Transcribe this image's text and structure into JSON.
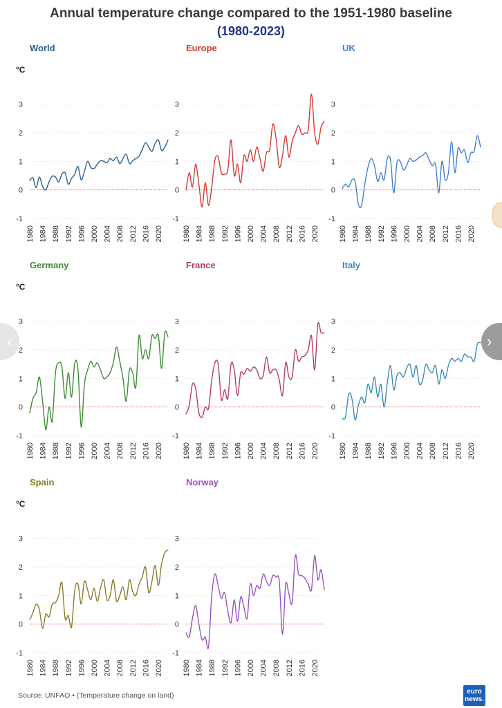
{
  "title": "Annual temperature change compared to the 1951-1980 baseline",
  "subtitle": "(1980-2023)",
  "subtitle_color": "#23338f",
  "unit_label": "°C",
  "source": "Source: UNFAO • (Temperature change on land)",
  "logo": {
    "line1": "euro",
    "line2": "news."
  },
  "nav": {
    "prev_icon": "chevron-left-icon",
    "next_icon": "chevron-right-icon",
    "prev_glyph": "‹",
    "next_glyph": "›"
  },
  "chart_data": [
    {
      "type": "line",
      "title": "World",
      "color": "#2d5e8e",
      "ylabel": "°C",
      "ylim": [
        -1,
        3.5
      ],
      "yticks": [
        -1,
        0,
        1,
        2,
        3
      ],
      "baseline": 0,
      "xticks": [
        "1980",
        "1984",
        "1988",
        "1992",
        "1996",
        "2000",
        "2004",
        "2008",
        "2012",
        "2016",
        "2020"
      ],
      "x_start": 1980,
      "x_end": 2023,
      "values": [
        0.32,
        0.42,
        0.08,
        0.45,
        0.12,
        0.0,
        0.28,
        0.48,
        0.45,
        0.28,
        0.55,
        0.6,
        0.2,
        0.4,
        0.55,
        0.82,
        0.35,
        0.65,
        1.0,
        0.78,
        0.75,
        0.9,
        1.02,
        1.0,
        0.95,
        1.1,
        1.02,
        1.15,
        0.92,
        1.1,
        1.25,
        0.92,
        1.02,
        1.1,
        1.18,
        1.42,
        1.65,
        1.5,
        1.35,
        1.62,
        1.75,
        1.38,
        1.5,
        1.75
      ]
    },
    {
      "type": "line",
      "title": "Europe",
      "color": "#d23a32",
      "ylabel": "",
      "ylim": [
        -1,
        3.5
      ],
      "yticks": [
        -1,
        0,
        1,
        2,
        3
      ],
      "baseline": 0,
      "xticks": [
        "1980",
        "1984",
        "1988",
        "1992",
        "1996",
        "2000",
        "2004",
        "2008",
        "2012",
        "2016",
        "2020"
      ],
      "x_start": 1980,
      "x_end": 2023,
      "values": [
        0.0,
        0.6,
        0.1,
        0.9,
        0.2,
        -0.6,
        0.25,
        -0.55,
        0.1,
        1.05,
        1.15,
        0.6,
        0.55,
        0.7,
        1.75,
        0.5,
        0.9,
        0.25,
        1.2,
        1.0,
        1.4,
        1.0,
        1.5,
        1.1,
        0.65,
        1.3,
        1.4,
        2.3,
        1.8,
        0.8,
        1.2,
        1.9,
        1.15,
        1.7,
        2.0,
        2.25,
        1.95,
        2.0,
        2.1,
        3.35,
        2.0,
        1.6,
        2.2,
        2.4
      ]
    },
    {
      "type": "line",
      "title": "UK",
      "color": "#3f80d6",
      "ylabel": "",
      "ylim": [
        -1,
        3.5
      ],
      "yticks": [
        -1,
        0,
        1,
        2,
        3
      ],
      "baseline": 0,
      "xticks": [
        "1980",
        "1984",
        "1988",
        "1992",
        "1996",
        "2000",
        "2004",
        "2008",
        "2012",
        "2016",
        "2020"
      ],
      "x_start": 1980,
      "x_end": 2023,
      "values": [
        0.05,
        0.2,
        0.1,
        0.35,
        0.3,
        -0.5,
        -0.55,
        0.2,
        0.8,
        1.1,
        0.85,
        0.3,
        0.6,
        0.35,
        1.1,
        1.05,
        -0.1,
        0.95,
        1.0,
        0.7,
        0.85,
        1.1,
        1.0,
        1.05,
        1.15,
        1.2,
        1.3,
        1.05,
        0.85,
        0.9,
        -0.1,
        1.0,
        0.35,
        0.6,
        1.7,
        0.6,
        1.45,
        1.3,
        1.4,
        0.95,
        1.3,
        1.35,
        1.9,
        1.5
      ]
    },
    {
      "type": "line",
      "title": "Germany",
      "color": "#3c8c35",
      "ylabel": "°C",
      "ylim": [
        -1,
        3.5
      ],
      "yticks": [
        -1,
        0,
        1,
        2,
        3
      ],
      "baseline": 0,
      "xticks": [
        "1980",
        "1984",
        "1988",
        "1992",
        "1996",
        "2000",
        "2004",
        "2008",
        "2012",
        "2016",
        "2020"
      ],
      "x_start": 1980,
      "x_end": 2023,
      "values": [
        -0.2,
        0.3,
        0.5,
        1.05,
        0.2,
        -0.8,
        0.0,
        -0.5,
        1.2,
        1.55,
        1.4,
        0.3,
        1.2,
        0.35,
        1.55,
        1.3,
        -0.7,
        0.8,
        1.3,
        1.6,
        1.4,
        1.55,
        1.3,
        1.0,
        1.05,
        1.2,
        1.55,
        2.1,
        1.6,
        1.0,
        0.2,
        1.3,
        1.2,
        0.7,
        2.5,
        1.7,
        2.0,
        1.7,
        2.5,
        2.4,
        2.5,
        1.35,
        2.6,
        2.45
      ]
    },
    {
      "type": "line",
      "title": "France",
      "color": "#b23d68",
      "ylabel": "",
      "ylim": [
        -1,
        3.5
      ],
      "yticks": [
        -1,
        0,
        1,
        2,
        3
      ],
      "baseline": 0,
      "xticks": [
        "1980",
        "1984",
        "1988",
        "1992",
        "1996",
        "2000",
        "2004",
        "2008",
        "2012",
        "2016",
        "2020"
      ],
      "x_start": 1980,
      "x_end": 2023,
      "values": [
        -0.25,
        0.05,
        0.8,
        0.65,
        -0.2,
        -0.35,
        0.0,
        -0.05,
        0.95,
        1.55,
        1.5,
        0.25,
        0.6,
        0.3,
        1.5,
        1.3,
        0.4,
        1.2,
        1.15,
        1.35,
        1.25,
        1.4,
        1.3,
        1.0,
        1.1,
        1.75,
        1.2,
        1.3,
        1.3,
        0.95,
        0.4,
        1.55,
        1.05,
        1.05,
        2.0,
        1.6,
        1.75,
        1.8,
        2.0,
        2.5,
        1.3,
        2.9,
        2.6,
        2.6
      ]
    },
    {
      "type": "line",
      "title": "Italy",
      "color": "#3a8ab8",
      "ylabel": "",
      "ylim": [
        -1,
        3.5
      ],
      "yticks": [
        -1,
        0,
        1,
        2,
        3
      ],
      "baseline": 0,
      "xticks": [
        "1980",
        "1984",
        "1988",
        "1992",
        "1996",
        "2000",
        "2004",
        "2008",
        "2012",
        "2016",
        "2020"
      ],
      "x_start": 1980,
      "x_end": 2023,
      "values": [
        -0.4,
        -0.35,
        0.45,
        0.3,
        -0.45,
        0.05,
        0.35,
        0.15,
        0.8,
        0.5,
        1.05,
        0.35,
        0.8,
        0.0,
        0.85,
        1.45,
        0.6,
        1.1,
        1.2,
        1.05,
        1.35,
        1.5,
        1.05,
        1.45,
        0.8,
        0.95,
        1.5,
        1.3,
        1.2,
        1.45,
        0.8,
        1.3,
        1.0,
        1.45,
        1.7,
        1.6,
        1.7,
        1.6,
        1.85,
        1.75,
        1.75,
        1.6,
        2.2,
        2.25
      ]
    },
    {
      "type": "line",
      "title": "Spain",
      "color": "#8a7a2a",
      "ylabel": "°C",
      "ylim": [
        -1,
        3.5
      ],
      "yticks": [
        -1,
        0,
        1,
        2,
        3
      ],
      "baseline": 0,
      "xticks": [
        "1980",
        "1984",
        "1988",
        "1992",
        "1996",
        "2000",
        "2004",
        "2008",
        "2012",
        "2016",
        "2020"
      ],
      "x_start": 1980,
      "x_end": 2023,
      "values": [
        0.15,
        0.4,
        0.7,
        0.5,
        -0.15,
        0.35,
        0.25,
        0.7,
        0.75,
        1.0,
        1.45,
        0.2,
        0.3,
        -0.1,
        1.2,
        1.4,
        0.7,
        1.5,
        1.2,
        0.85,
        1.25,
        0.8,
        1.25,
        1.55,
        0.85,
        1.0,
        1.55,
        0.8,
        1.0,
        1.3,
        0.85,
        1.55,
        1.15,
        1.0,
        1.4,
        1.65,
        2.0,
        1.1,
        1.5,
        2.05,
        1.35,
        2.1,
        2.5,
        2.6
      ]
    },
    {
      "type": "line",
      "title": "Norway",
      "color": "#9a52c2",
      "ylabel": "",
      "ylim": [
        -1,
        3.5
      ],
      "yticks": [
        -1,
        0,
        1,
        2,
        3
      ],
      "baseline": 0,
      "xticks": [
        "1980",
        "1984",
        "1988",
        "1992",
        "1996",
        "2000",
        "2004",
        "2008",
        "2012",
        "2016",
        "2020"
      ],
      "x_start": 1980,
      "x_end": 2023,
      "values": [
        -0.3,
        -0.45,
        0.2,
        0.65,
        0.0,
        -0.55,
        -0.45,
        -0.8,
        1.0,
        1.75,
        1.35,
        0.9,
        1.1,
        0.45,
        0.05,
        0.85,
        0.1,
        0.95,
        0.6,
        0.2,
        1.4,
        1.0,
        1.35,
        1.25,
        1.75,
        1.5,
        1.35,
        1.7,
        1.65,
        1.5,
        -0.35,
        1.4,
        1.05,
        0.75,
        2.4,
        1.75,
        1.7,
        1.6,
        1.4,
        1.2,
        2.4,
        1.55,
        1.9,
        1.2
      ]
    }
  ]
}
